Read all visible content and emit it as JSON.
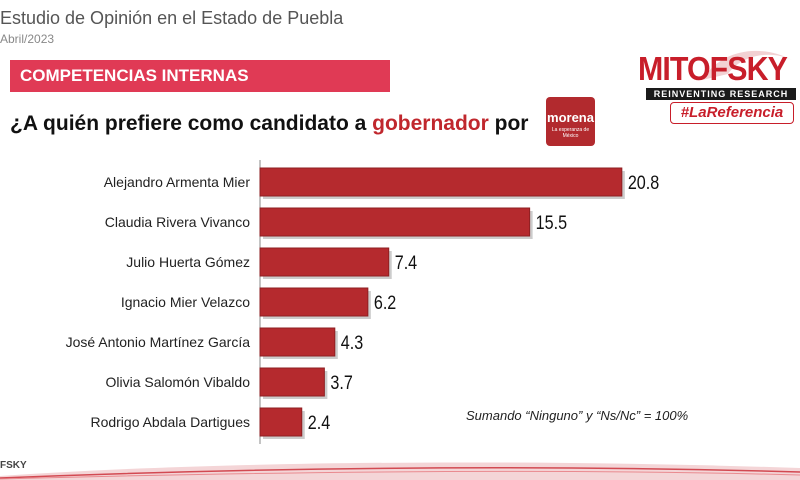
{
  "header": {
    "title": "Estudio de Opinión en el Estado de Puebla",
    "date": "Abril/2023"
  },
  "banner": {
    "label": "COMPETENCIAS INTERNAS"
  },
  "question": {
    "prefix": "¿A quién prefiere como candidato a ",
    "highlight": "gobernador",
    "suffix": " por"
  },
  "party_badge": {
    "name": "morena",
    "tagline": "La esperanza de México"
  },
  "logo": {
    "brand": "MITOFSKY",
    "tagline": "REINVENTING RESEARCH",
    "hashtag": "#LaReferencia"
  },
  "footer": {
    "logo_text": "FSKY"
  },
  "note": "Sumando “Ninguno” y “Ns/Nc” = 100%",
  "colors": {
    "bar": "#b52a2e",
    "bar_dark": "#8e1f22",
    "banner": "#e03a55",
    "accent": "#c0272d"
  },
  "chart_data": {
    "type": "bar",
    "orientation": "horizontal",
    "categories": [
      "Alejandro Armenta Mier",
      "Claudia Rivera Vivanco",
      "Julio Huerta Gómez",
      "Ignacio Mier Velazco",
      "José Antonio Martínez García",
      "Olivia Salomón Vibaldo",
      "Rodrigo Abdala Dartigues"
    ],
    "values": [
      20.8,
      15.5,
      7.4,
      6.2,
      4.3,
      3.7,
      2.4
    ],
    "data_labels": [
      "20.8",
      "15.5",
      "7.4",
      "6.2",
      "4.3",
      "3.7",
      "2.4"
    ],
    "xlim": [
      0,
      21.5
    ],
    "grid": false,
    "legend": "none"
  }
}
